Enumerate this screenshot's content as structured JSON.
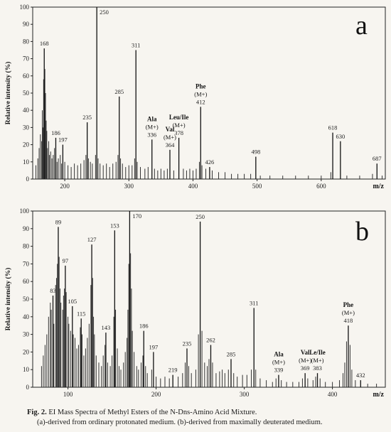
{
  "caption": {
    "prefix": "Fig. 2.",
    "title": "EI Mass Spectra of Methyl Esters of the N-Dns-Amino Acid Mixture.",
    "subtitle": "(a)-derived from ordinary protonated medium. (b)-derived from maximally deuterated medium."
  },
  "chart_data": [
    {
      "type": "bar",
      "panel": "a",
      "ylabel": "Relative intensity (%)",
      "xlabel": "m/z",
      "xlim": [
        150,
        700
      ],
      "ylim": [
        0,
        100
      ],
      "yticks": [
        0,
        10,
        20,
        30,
        40,
        50,
        60,
        70,
        80,
        90,
        100
      ],
      "xticks": [
        200,
        300,
        400,
        500,
        600
      ],
      "peaks": [
        {
          "x": 250,
          "y": 100,
          "label": "250"
        },
        {
          "x": 168,
          "y": 76,
          "label": "168"
        },
        {
          "x": 311,
          "y": 75,
          "label": "311"
        },
        {
          "x": 285,
          "y": 48,
          "label": "285"
        },
        {
          "x": 412,
          "y": 42,
          "label": "412"
        },
        {
          "x": 235,
          "y": 33,
          "label": "235"
        },
        {
          "x": 336,
          "y": 23,
          "label": "336"
        },
        {
          "x": 378,
          "y": 24,
          "label": "378"
        },
        {
          "x": 364,
          "y": 17,
          "label": "364"
        },
        {
          "x": 186,
          "y": 24,
          "label": "186"
        },
        {
          "x": 197,
          "y": 20,
          "label": "197"
        },
        {
          "x": 426,
          "y": 7,
          "label": "426"
        },
        {
          "x": 498,
          "y": 13,
          "label": "498"
        },
        {
          "x": 618,
          "y": 27,
          "label": "618"
        },
        {
          "x": 630,
          "y": 22,
          "label": "630"
        },
        {
          "x": 687,
          "y": 9,
          "label": "687"
        }
      ],
      "minor_peaks": [
        [
          155,
          8
        ],
        [
          158,
          12
        ],
        [
          160,
          18
        ],
        [
          162,
          26
        ],
        [
          164,
          22
        ],
        [
          165,
          40
        ],
        [
          166,
          30
        ],
        [
          167,
          58
        ],
        [
          169,
          64
        ],
        [
          170,
          50
        ],
        [
          171,
          34
        ],
        [
          172,
          28
        ],
        [
          173,
          18
        ],
        [
          175,
          22
        ],
        [
          176,
          14
        ],
        [
          178,
          16
        ],
        [
          180,
          12
        ],
        [
          182,
          14
        ],
        [
          184,
          18
        ],
        [
          188,
          10
        ],
        [
          190,
          12
        ],
        [
          193,
          14
        ],
        [
          195,
          9
        ],
        [
          200,
          10
        ],
        [
          205,
          8
        ],
        [
          210,
          7
        ],
        [
          215,
          9
        ],
        [
          220,
          8
        ],
        [
          225,
          9
        ],
        [
          230,
          11
        ],
        [
          233,
          14
        ],
        [
          237,
          12
        ],
        [
          240,
          10
        ],
        [
          243,
          9
        ],
        [
          248,
          14
        ],
        [
          252,
          12
        ],
        [
          255,
          9
        ],
        [
          260,
          8
        ],
        [
          265,
          9
        ],
        [
          270,
          7
        ],
        [
          275,
          9
        ],
        [
          280,
          10
        ],
        [
          283,
          14
        ],
        [
          287,
          12
        ],
        [
          290,
          9
        ],
        [
          295,
          7
        ],
        [
          300,
          8
        ],
        [
          305,
          8
        ],
        [
          309,
          12
        ],
        [
          313,
          10
        ],
        [
          318,
          7
        ],
        [
          325,
          6
        ],
        [
          330,
          7
        ],
        [
          340,
          6
        ],
        [
          345,
          5
        ],
        [
          350,
          6
        ],
        [
          355,
          5
        ],
        [
          360,
          6
        ],
        [
          370,
          5
        ],
        [
          385,
          6
        ],
        [
          390,
          5
        ],
        [
          395,
          6
        ],
        [
          400,
          5
        ],
        [
          405,
          6
        ],
        [
          410,
          10
        ],
        [
          414,
          8
        ],
        [
          420,
          6
        ],
        [
          430,
          5
        ],
        [
          440,
          4
        ],
        [
          450,
          4
        ],
        [
          460,
          3
        ],
        [
          470,
          3
        ],
        [
          480,
          3
        ],
        [
          490,
          3
        ],
        [
          505,
          2
        ],
        [
          520,
          2
        ],
        [
          540,
          2
        ],
        [
          560,
          2
        ],
        [
          580,
          2
        ],
        [
          600,
          2
        ],
        [
          615,
          4
        ],
        [
          640,
          2
        ],
        [
          660,
          2
        ],
        [
          680,
          3
        ],
        [
          695,
          2
        ]
      ],
      "annotations": [
        {
          "x": 336,
          "name": "Ala",
          "ion": "(M+)"
        },
        {
          "x": 364,
          "name": "Val",
          "ion": "(M+)"
        },
        {
          "x": 378,
          "name": "Leu/Ile",
          "ion": "(M+)"
        },
        {
          "x": 412,
          "name": "Phe",
          "ion": "(M+)"
        }
      ]
    },
    {
      "type": "bar",
      "panel": "b",
      "ylabel": "Relative intensity (%)",
      "xlabel": "m/z",
      "xlim": [
        60,
        460
      ],
      "ylim": [
        0,
        100
      ],
      "yticks": [
        0,
        10,
        20,
        30,
        40,
        50,
        60,
        70,
        80,
        90,
        100
      ],
      "xticks": [
        100,
        200,
        300,
        400
      ],
      "peaks": [
        {
          "x": 170,
          "y": 100,
          "label": "170"
        },
        {
          "x": 250,
          "y": 94,
          "label": "250"
        },
        {
          "x": 89,
          "y": 91,
          "label": "89"
        },
        {
          "x": 153,
          "y": 89,
          "label": "153"
        },
        {
          "x": 127,
          "y": 81,
          "label": "127"
        },
        {
          "x": 97,
          "y": 69,
          "label": "97"
        },
        {
          "x": 83,
          "y": 52,
          "label": "83"
        },
        {
          "x": 105,
          "y": 46,
          "label": "105"
        },
        {
          "x": 311,
          "y": 45,
          "label": "311"
        },
        {
          "x": 115,
          "y": 39,
          "label": "115"
        },
        {
          "x": 143,
          "y": 31,
          "label": "143"
        },
        {
          "x": 186,
          "y": 32,
          "label": "186"
        },
        {
          "x": 197,
          "y": 20,
          "label": "197"
        },
        {
          "x": 235,
          "y": 22,
          "label": "235"
        },
        {
          "x": 262,
          "y": 24,
          "label": "262"
        },
        {
          "x": 285,
          "y": 16,
          "label": "285"
        },
        {
          "x": 219,
          "y": 7,
          "label": "219"
        },
        {
          "x": 339,
          "y": 7,
          "label": "339"
        },
        {
          "x": 369,
          "y": 8,
          "label": "369"
        },
        {
          "x": 383,
          "y": 8,
          "label": "383"
        },
        {
          "x": 418,
          "y": 35,
          "label": "418"
        },
        {
          "x": 432,
          "y": 4,
          "label": "432"
        }
      ],
      "minor_peaks": [
        [
          70,
          12
        ],
        [
          72,
          18
        ],
        [
          74,
          24
        ],
        [
          76,
          30
        ],
        [
          78,
          40
        ],
        [
          80,
          48
        ],
        [
          81,
          44
        ],
        [
          84,
          36
        ],
        [
          86,
          58
        ],
        [
          87,
          62
        ],
        [
          88,
          70
        ],
        [
          90,
          74
        ],
        [
          91,
          56
        ],
        [
          92,
          48
        ],
        [
          94,
          44
        ],
        [
          95,
          52
        ],
        [
          96,
          56
        ],
        [
          98,
          54
        ],
        [
          100,
          40
        ],
        [
          101,
          36
        ],
        [
          103,
          32
        ],
        [
          106,
          30
        ],
        [
          108,
          28
        ],
        [
          110,
          22
        ],
        [
          112,
          24
        ],
        [
          114,
          34
        ],
        [
          116,
          30
        ],
        [
          118,
          18
        ],
        [
          120,
          22
        ],
        [
          122,
          28
        ],
        [
          124,
          36
        ],
        [
          126,
          58
        ],
        [
          128,
          62
        ],
        [
          129,
          40
        ],
        [
          130,
          30
        ],
        [
          132,
          18
        ],
        [
          135,
          14
        ],
        [
          138,
          12
        ],
        [
          140,
          18
        ],
        [
          142,
          24
        ],
        [
          145,
          14
        ],
        [
          148,
          12
        ],
        [
          150,
          18
        ],
        [
          152,
          40
        ],
        [
          154,
          44
        ],
        [
          156,
          22
        ],
        [
          158,
          12
        ],
        [
          160,
          10
        ],
        [
          163,
          14
        ],
        [
          165,
          20
        ],
        [
          167,
          28
        ],
        [
          168,
          44
        ],
        [
          169,
          70
        ],
        [
          171,
          76
        ],
        [
          172,
          56
        ],
        [
          173,
          32
        ],
        [
          175,
          20
        ],
        [
          178,
          12
        ],
        [
          180,
          10
        ],
        [
          183,
          14
        ],
        [
          185,
          18
        ],
        [
          188,
          12
        ],
        [
          190,
          8
        ],
        [
          195,
          10
        ],
        [
          200,
          6
        ],
        [
          205,
          5
        ],
        [
          210,
          6
        ],
        [
          215,
          5
        ],
        [
          225,
          6
        ],
        [
          230,
          8
        ],
        [
          233,
          14
        ],
        [
          237,
          12
        ],
        [
          240,
          8
        ],
        [
          245,
          10
        ],
        [
          248,
          30
        ],
        [
          252,
          32
        ],
        [
          255,
          14
        ],
        [
          258,
          12
        ],
        [
          260,
          16
        ],
        [
          264,
          14
        ],
        [
          268,
          8
        ],
        [
          272,
          9
        ],
        [
          275,
          10
        ],
        [
          278,
          8
        ],
        [
          282,
          10
        ],
        [
          288,
          8
        ],
        [
          292,
          6
        ],
        [
          298,
          7
        ],
        [
          303,
          7
        ],
        [
          308,
          10
        ],
        [
          313,
          10
        ],
        [
          318,
          5
        ],
        [
          325,
          4
        ],
        [
          332,
          3
        ],
        [
          336,
          5
        ],
        [
          342,
          4
        ],
        [
          348,
          3
        ],
        [
          355,
          3
        ],
        [
          362,
          3
        ],
        [
          366,
          5
        ],
        [
          372,
          5
        ],
        [
          378,
          4
        ],
        [
          381,
          6
        ],
        [
          386,
          5
        ],
        [
          392,
          3
        ],
        [
          400,
          3
        ],
        [
          408,
          4
        ],
        [
          412,
          8
        ],
        [
          414,
          14
        ],
        [
          416,
          26
        ],
        [
          420,
          24
        ],
        [
          422,
          10
        ],
        [
          426,
          4
        ],
        [
          440,
          2
        ],
        [
          450,
          2
        ]
      ],
      "annotations": [
        {
          "x": 339,
          "name": "Ala",
          "ion": "(M+)"
        },
        {
          "x": 369,
          "name": "Val",
          "ion": "(M+)"
        },
        {
          "x": 383,
          "name": "Le/Ile",
          "ion": "(M+)"
        },
        {
          "x": 418,
          "name": "Phe",
          "ion": "(M+)"
        }
      ]
    }
  ]
}
